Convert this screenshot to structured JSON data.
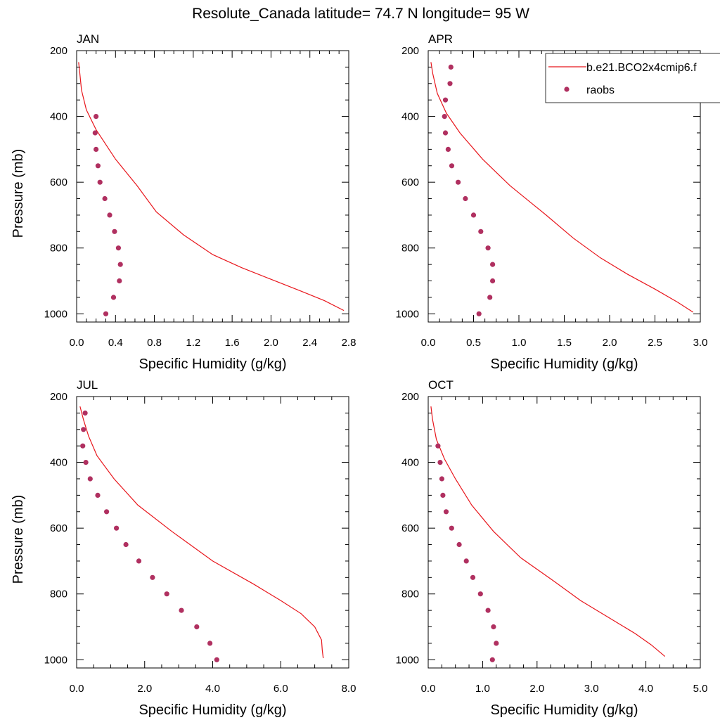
{
  "title": "Resolute_Canada  latitude= 74.7 N longitude= 95 W",
  "colors": {
    "model": "#e8161c",
    "obs": "#b03060"
  },
  "legend": {
    "placement": "top-right of APR panel",
    "entries": [
      {
        "label": "b.e21.BCO2x4cmip6.f",
        "kind": "line",
        "color": "#e8161c"
      },
      {
        "label": "raobs",
        "kind": "marker",
        "color": "#b03060"
      }
    ]
  },
  "chart_data": [
    {
      "type": "line",
      "panel": "JAN",
      "xlabel": "Specific Humidity (g/kg)",
      "ylabel": "Pressure (mb)",
      "xlim": [
        0,
        2.8
      ],
      "ylim": [
        1025,
        200
      ],
      "y_reversed": true,
      "xticks": [
        "0.0",
        "0.4",
        "0.8",
        "1.2",
        "1.6",
        "2.0",
        "2.4",
        "2.8"
      ],
      "yticks": [
        "200",
        "400",
        "600",
        "800",
        "1000"
      ],
      "series": [
        {
          "kind": "line",
          "x": [
            0.02,
            0.03,
            0.05,
            0.1,
            0.2,
            0.4,
            0.62,
            0.82,
            1.1,
            1.4,
            1.7,
            2.0,
            2.3,
            2.55,
            2.75
          ],
          "y": [
            235,
            260,
            320,
            380,
            440,
            530,
            610,
            690,
            760,
            820,
            860,
            895,
            930,
            960,
            990
          ]
        },
        {
          "kind": "scatter",
          "x": [
            0.2,
            0.19,
            0.2,
            0.22,
            0.24,
            0.29,
            0.34,
            0.39,
            0.43,
            0.45,
            0.44,
            0.38,
            0.3
          ],
          "y": [
            400,
            450,
            500,
            550,
            600,
            650,
            700,
            750,
            800,
            850,
            900,
            950,
            1000
          ]
        }
      ]
    },
    {
      "type": "line",
      "panel": "APR",
      "xlabel": "Specific Humidity (g/kg)",
      "ylabel": "",
      "xlim": [
        0,
        3.0
      ],
      "ylim": [
        1025,
        200
      ],
      "y_reversed": true,
      "xticks": [
        "0.0",
        "0.5",
        "1.0",
        "1.5",
        "2.0",
        "2.5",
        "3.0"
      ],
      "yticks": [
        "200",
        "400",
        "600",
        "800",
        "1000"
      ],
      "series": [
        {
          "kind": "line",
          "x": [
            0.03,
            0.05,
            0.1,
            0.2,
            0.35,
            0.6,
            0.9,
            1.3,
            1.6,
            1.9,
            2.2,
            2.5,
            2.75,
            2.92
          ],
          "y": [
            235,
            270,
            330,
            390,
            450,
            530,
            610,
            700,
            770,
            830,
            880,
            925,
            965,
            995
          ]
        },
        {
          "kind": "scatter",
          "x": [
            0.25,
            0.24,
            0.19,
            0.18,
            0.19,
            0.22,
            0.26,
            0.33,
            0.41,
            0.5,
            0.58,
            0.66,
            0.71,
            0.71,
            0.68,
            0.56
          ],
          "y": [
            250,
            300,
            350,
            400,
            450,
            500,
            550,
            600,
            650,
            700,
            750,
            800,
            850,
            900,
            950,
            1000
          ]
        }
      ]
    },
    {
      "type": "line",
      "panel": "JUL",
      "xlabel": "Specific Humidity (g/kg)",
      "ylabel": "Pressure (mb)",
      "xlim": [
        0,
        8.0
      ],
      "ylim": [
        1025,
        200
      ],
      "y_reversed": true,
      "xticks": [
        "0.0",
        "2.0",
        "4.0",
        "6.0",
        "8.0"
      ],
      "yticks": [
        "200",
        "400",
        "600",
        "800",
        "1000"
      ],
      "series": [
        {
          "kind": "line",
          "x": [
            0.1,
            0.2,
            0.35,
            0.6,
            1.1,
            1.8,
            2.8,
            4.0,
            5.2,
            6.0,
            6.6,
            7.0,
            7.2,
            7.22,
            7.25
          ],
          "y": [
            230,
            270,
            320,
            380,
            450,
            530,
            610,
            700,
            770,
            820,
            860,
            900,
            940,
            970,
            995
          ]
        },
        {
          "kind": "scatter",
          "x": [
            0.25,
            0.2,
            0.18,
            0.27,
            0.4,
            0.62,
            0.88,
            1.17,
            1.45,
            1.83,
            2.23,
            2.65,
            3.08,
            3.53,
            3.92,
            4.12
          ],
          "y": [
            250,
            300,
            350,
            400,
            450,
            500,
            550,
            600,
            650,
            700,
            750,
            800,
            850,
            900,
            950,
            1000
          ]
        }
      ]
    },
    {
      "type": "line",
      "panel": "OCT",
      "xlabel": "Specific Humidity (g/kg)",
      "ylabel": "",
      "xlim": [
        0,
        5.0
      ],
      "ylim": [
        1025,
        200
      ],
      "y_reversed": true,
      "xticks": [
        "0.0",
        "1.0",
        "2.0",
        "3.0",
        "4.0",
        "5.0"
      ],
      "yticks": [
        "200",
        "400",
        "600",
        "800",
        "1000"
      ],
      "series": [
        {
          "kind": "line",
          "x": [
            0.05,
            0.08,
            0.15,
            0.3,
            0.5,
            0.8,
            1.2,
            1.7,
            2.3,
            2.8,
            3.3,
            3.8,
            4.1,
            4.35
          ],
          "y": [
            230,
            270,
            330,
            390,
            450,
            530,
            610,
            690,
            760,
            820,
            870,
            920,
            955,
            990
          ]
        },
        {
          "kind": "scatter",
          "x": [
            0.18,
            0.22,
            0.25,
            0.27,
            0.33,
            0.43,
            0.57,
            0.7,
            0.82,
            0.96,
            1.1,
            1.2,
            1.25,
            1.18
          ],
          "y": [
            350,
            400,
            450,
            500,
            550,
            600,
            650,
            700,
            750,
            800,
            850,
            900,
            950,
            1000
          ]
        }
      ]
    }
  ]
}
